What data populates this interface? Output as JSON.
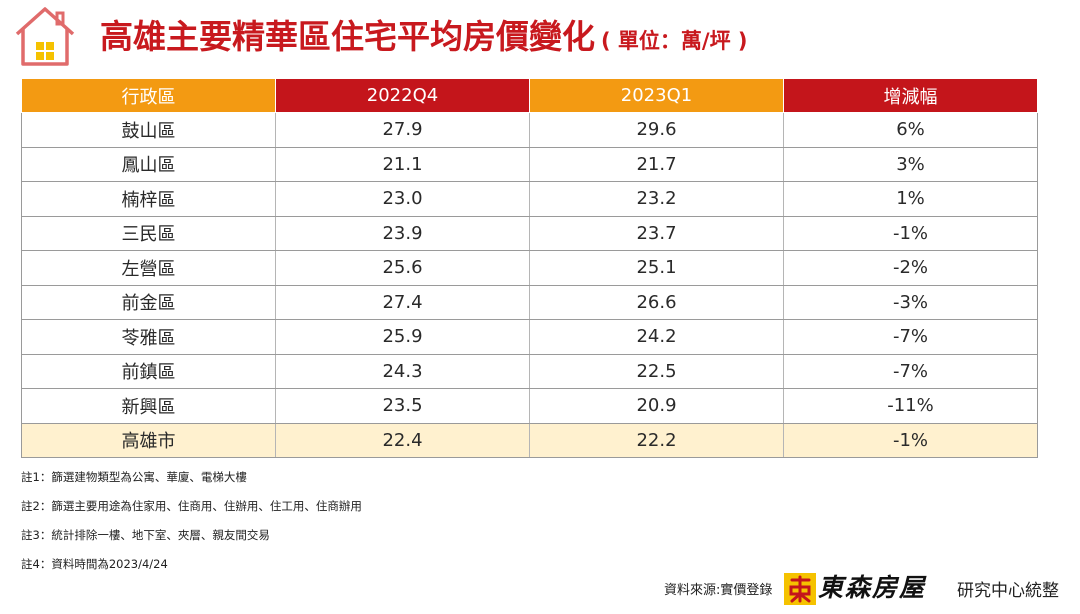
{
  "title": "高雄主要精華區住宅平均房價變化",
  "unit": "( 單位：萬/坪 )",
  "chart_data": {
    "type": "table",
    "columns": [
      "行政區",
      "2022Q4",
      "2023Q1",
      "增減幅"
    ],
    "rows": [
      {
        "district": "鼓山區",
        "q4_2022": "27.9",
        "q1_2023": "29.6",
        "change": "6%"
      },
      {
        "district": "鳳山區",
        "q4_2022": "21.1",
        "q1_2023": "21.7",
        "change": "3%"
      },
      {
        "district": "楠梓區",
        "q4_2022": "23.0",
        "q1_2023": "23.2",
        "change": "1%"
      },
      {
        "district": "三民區",
        "q4_2022": "23.9",
        "q1_2023": "23.7",
        "change": "-1%"
      },
      {
        "district": "左營區",
        "q4_2022": "25.6",
        "q1_2023": "25.1",
        "change": "-2%"
      },
      {
        "district": "前金區",
        "q4_2022": "27.4",
        "q1_2023": "26.6",
        "change": "-3%"
      },
      {
        "district": "苓雅區",
        "q4_2022": "25.9",
        "q1_2023": "24.2",
        "change": "-7%"
      },
      {
        "district": "前鎮區",
        "q4_2022": "24.3",
        "q1_2023": "22.5",
        "change": "-7%"
      },
      {
        "district": "新興區",
        "q4_2022": "23.5",
        "q1_2023": "20.9",
        "change": "-11%"
      }
    ],
    "total": {
      "district": "高雄市",
      "q4_2022": "22.4",
      "q1_2023": "22.2",
      "change": "-1%"
    }
  },
  "notes": [
    "註1：篩選建物類型為公寓、華廈、電梯大樓",
    "註2：篩選主要用途為住家用、住商用、住辦用、住工用、住商辦用",
    "註3：統計排除一樓、地下室、夾層、親友間交易",
    "註4：資料時間為2023/4/24"
  ],
  "source": "資料來源:實價登錄",
  "brand": "東森房屋",
  "department": "研究中心統整",
  "colors": {
    "title": "#c8191e",
    "header_orange": "#f39a12",
    "header_red": "#c4151b",
    "increase": "#e32828",
    "decrease": "#1aa04f",
    "total_row_bg": "#fff1cf",
    "icon_windows": "#f5c200"
  }
}
